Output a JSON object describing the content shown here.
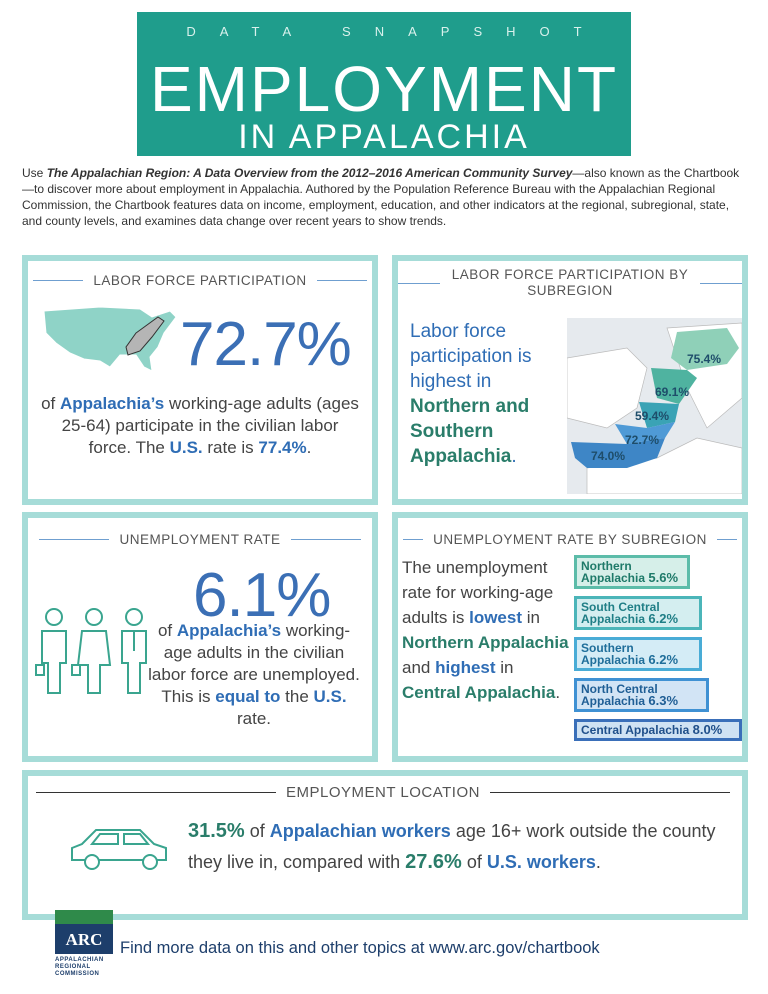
{
  "header": {
    "kicker": "DATA SNAPSHOT",
    "title": "EMPLOYMENT",
    "subtitle": "IN APPALACHIA"
  },
  "intro": [
    "Use ",
    "The Appalachian Region: A Data Overview from the 2012–2016 American Community Survey",
    "—also known as the Chartbook—to discover more about employment in Appalachia. Authored by the Population Reference Bureau with the Appalachian Regional Commission, the Chartbook features data on income, employment, education, and other indicators at the regional, subregional, state, and county levels, and examines data change over recent years to show trends."
  ],
  "labor_force": {
    "heading": "LABOR FORCE PARTICIPATION",
    "stat": "72.7%",
    "text": [
      "of ",
      "Appalachia’s",
      " working-age adults (ages 25-64) participate in the civilian labor force. The ",
      "U.S.",
      " rate is ",
      "77.4%",
      "."
    ]
  },
  "labor_force_subregion": {
    "heading": "LABOR FORCE PARTICIPATION BY SUBREGION",
    "text": [
      "Labor force participation is highest in ",
      "Northern and Southern Appalachia",
      "."
    ],
    "map_labels": [
      "75.4%",
      "69.1%",
      "59.4%",
      "72.7%",
      "74.0%"
    ]
  },
  "unemployment": {
    "heading": "UNEMPLOYMENT RATE",
    "stat": "6.1%",
    "text": [
      "of ",
      "Appalachia’s",
      " working-age adults in the civilian labor force are unemployed. This is ",
      "equal to",
      " the ",
      "U.S.",
      " rate."
    ]
  },
  "unemployment_subregion": {
    "heading": "UNEMPLOYMENT RATE BY SUBREGION",
    "text": [
      "The unemployment rate for working-age adults is ",
      "lowest",
      " in ",
      "Northern Appalachia",
      " and ",
      "highest",
      " in ",
      "Central Appalachia",
      "."
    ],
    "boxes": [
      {
        "name": "Northern Appalachia",
        "rate": "5.6%"
      },
      {
        "name": "South Central Appalachia",
        "rate": "6.2%"
      },
      {
        "name": "Southern Appalachia",
        "rate": "6.2%"
      },
      {
        "name": "North Central Appalachia",
        "rate": "6.3%"
      },
      {
        "name": "Central Appalachia",
        "rate": "8.0%"
      }
    ]
  },
  "location": {
    "heading": "EMPLOYMENT LOCATION",
    "text": [
      "31.5%",
      " of ",
      "Appalachian workers",
      " age 16+ work outside the county they live in, compared with ",
      "27.6%",
      " of ",
      "U.S. workers",
      "."
    ]
  },
  "footer": {
    "logo": "ARC",
    "logo_lines": [
      "APPALACHIAN",
      "REGIONAL",
      "COMMISSION"
    ],
    "text": "Find more data on this and other topics at www.arc.gov/chartbook"
  }
}
